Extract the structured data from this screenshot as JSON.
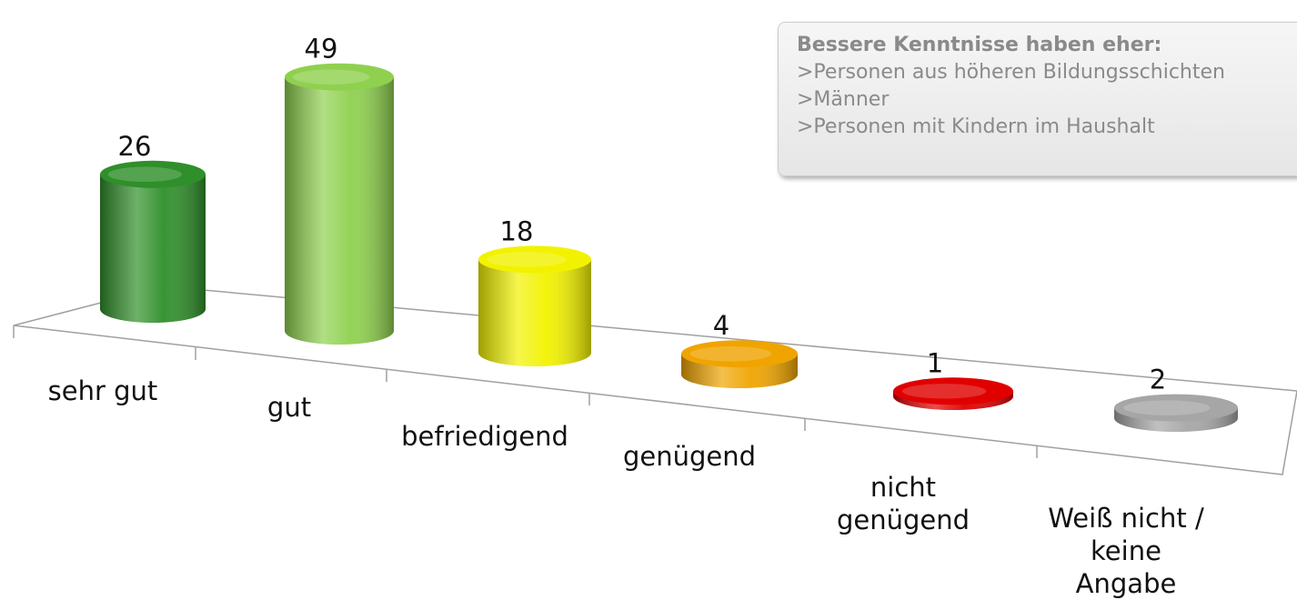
{
  "chart_data": {
    "type": "bar3d",
    "categories": [
      "sehr gut",
      "gut",
      "befriedigend",
      "genügend",
      "nicht genügend",
      "Weiß nicht / keine Angabe"
    ],
    "values": [
      26,
      49,
      18,
      4,
      1,
      2
    ],
    "colors": [
      "#2f8f2a",
      "#8fd14f",
      "#f2f200",
      "#f0a400",
      "#e00000",
      "#a6a6a6"
    ],
    "annotation": {
      "title": "Bessere Kenntnisse haben eher:",
      "lines": [
        ">Personen aus höheren Bildungsschichten",
        ">Männer",
        ">Personen mit Kindern im Haushalt"
      ]
    }
  }
}
